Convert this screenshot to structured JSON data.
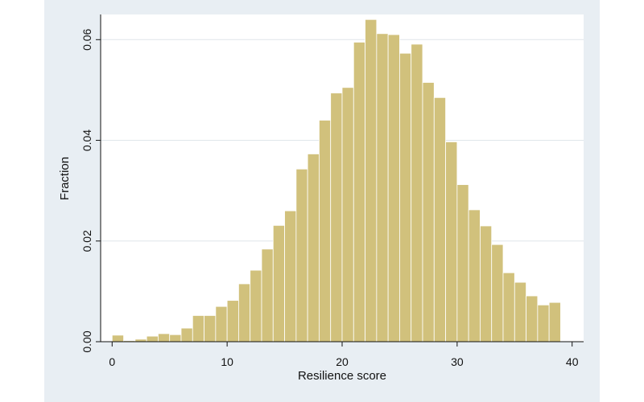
{
  "chart_data": {
    "type": "bar",
    "xlabel": "Resilience score",
    "ylabel": "Fraction",
    "xlim": [
      -1,
      41
    ],
    "ylim": [
      0,
      0.065
    ],
    "x_ticks": [
      0,
      10,
      20,
      30,
      40
    ],
    "x_tick_labels": [
      "0",
      "10",
      "20",
      "30",
      "40"
    ],
    "y_ticks": [
      0,
      0.02,
      0.04,
      0.06
    ],
    "y_tick_labels": [
      "0.00",
      "0.02",
      "0.04",
      "0.06"
    ],
    "grid": "horizontal",
    "bar_color": "#d1c17c",
    "bar_edge_color": "#ffffff",
    "background_color": "#e8eef3",
    "plot_color": "#ffffff",
    "bin_width": 1,
    "bins": [
      {
        "x": 0,
        "value": 0.0013
      },
      {
        "x": 1,
        "value": 0.0002
      },
      {
        "x": 2,
        "value": 0.0005
      },
      {
        "x": 3,
        "value": 0.0011
      },
      {
        "x": 4,
        "value": 0.0016
      },
      {
        "x": 5,
        "value": 0.0014
      },
      {
        "x": 6,
        "value": 0.0027
      },
      {
        "x": 7,
        "value": 0.0052
      },
      {
        "x": 8,
        "value": 0.0052
      },
      {
        "x": 9,
        "value": 0.007
      },
      {
        "x": 10,
        "value": 0.0082
      },
      {
        "x": 11,
        "value": 0.0115
      },
      {
        "x": 12,
        "value": 0.0142
      },
      {
        "x": 13,
        "value": 0.0184
      },
      {
        "x": 14,
        "value": 0.0231
      },
      {
        "x": 15,
        "value": 0.026
      },
      {
        "x": 16,
        "value": 0.0343
      },
      {
        "x": 17,
        "value": 0.0373
      },
      {
        "x": 18,
        "value": 0.044
      },
      {
        "x": 19,
        "value": 0.0494
      },
      {
        "x": 20,
        "value": 0.0505
      },
      {
        "x": 21,
        "value": 0.0595
      },
      {
        "x": 22,
        "value": 0.064
      },
      {
        "x": 23,
        "value": 0.0612
      },
      {
        "x": 24,
        "value": 0.061
      },
      {
        "x": 25,
        "value": 0.0573
      },
      {
        "x": 26,
        "value": 0.0591
      },
      {
        "x": 27,
        "value": 0.0515
      },
      {
        "x": 28,
        "value": 0.0485
      },
      {
        "x": 29,
        "value": 0.0397
      },
      {
        "x": 30,
        "value": 0.0312
      },
      {
        "x": 31,
        "value": 0.0262
      },
      {
        "x": 32,
        "value": 0.023
      },
      {
        "x": 33,
        "value": 0.0193
      },
      {
        "x": 34,
        "value": 0.0137
      },
      {
        "x": 35,
        "value": 0.0118
      },
      {
        "x": 36,
        "value": 0.0091
      },
      {
        "x": 37,
        "value": 0.0073
      },
      {
        "x": 38,
        "value": 0.0078
      }
    ]
  }
}
